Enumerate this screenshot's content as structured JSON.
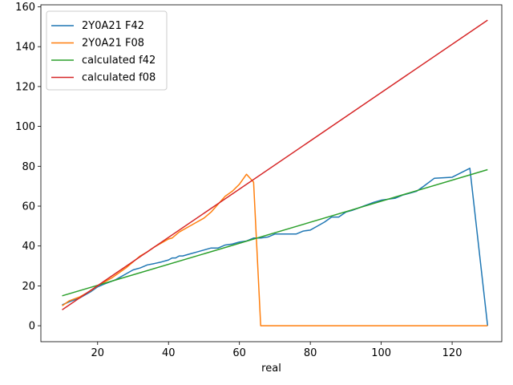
{
  "chart_data": {
    "type": "line",
    "xlabel": "real",
    "ylabel": "",
    "title": "",
    "xlim": [
      4,
      134
    ],
    "ylim": [
      -8,
      161
    ],
    "xticks": [
      20,
      40,
      60,
      80,
      100,
      120
    ],
    "yticks": [
      0,
      20,
      40,
      60,
      80,
      100,
      120,
      140,
      160
    ],
    "grid": false,
    "legend_position": "top-left",
    "series": [
      {
        "name": "2Y0A21 F42",
        "color": "#1f77b4",
        "points": [
          [
            10,
            10.5
          ],
          [
            12,
            12
          ],
          [
            15,
            14
          ],
          [
            18,
            17
          ],
          [
            20,
            19.5
          ],
          [
            22,
            21
          ],
          [
            25,
            23
          ],
          [
            28,
            26
          ],
          [
            30,
            28
          ],
          [
            32,
            29
          ],
          [
            34,
            30.5
          ],
          [
            36,
            31.2
          ],
          [
            38,
            32
          ],
          [
            40,
            33
          ],
          [
            41,
            34
          ],
          [
            42,
            34
          ],
          [
            43,
            35
          ],
          [
            44,
            35
          ],
          [
            46,
            36
          ],
          [
            48,
            37
          ],
          [
            50,
            38
          ],
          [
            52,
            39
          ],
          [
            54,
            39
          ],
          [
            56,
            40.5
          ],
          [
            58,
            41
          ],
          [
            60,
            42
          ],
          [
            62,
            42.5
          ],
          [
            64,
            44
          ],
          [
            66,
            44
          ],
          [
            68,
            44.5
          ],
          [
            70,
            46
          ],
          [
            72,
            46
          ],
          [
            74,
            46
          ],
          [
            76,
            46
          ],
          [
            78,
            47.5
          ],
          [
            80,
            48
          ],
          [
            82,
            50
          ],
          [
            84,
            52
          ],
          [
            86,
            54.5
          ],
          [
            88,
            54.5
          ],
          [
            90,
            57
          ],
          [
            92,
            58
          ],
          [
            95,
            60
          ],
          [
            98,
            62
          ],
          [
            100,
            63
          ],
          [
            102,
            63.5
          ],
          [
            104,
            64
          ],
          [
            106,
            65.5
          ],
          [
            108,
            66.5
          ],
          [
            110,
            67.5
          ],
          [
            112,
            70
          ],
          [
            115,
            74
          ],
          [
            120,
            74.5
          ],
          [
            125,
            79
          ],
          [
            130,
            0
          ]
        ]
      },
      {
        "name": "2Y0A21 F08",
        "color": "#ff7f0e",
        "points": [
          [
            10,
            10
          ],
          [
            12,
            12.5
          ],
          [
            15,
            14.5
          ],
          [
            18,
            17.5
          ],
          [
            20,
            20
          ],
          [
            22,
            22
          ],
          [
            24,
            24
          ],
          [
            26,
            26.5
          ],
          [
            28,
            29
          ],
          [
            30,
            32
          ],
          [
            32,
            35
          ],
          [
            34,
            37
          ],
          [
            36,
            39.5
          ],
          [
            38,
            41.5
          ],
          [
            40,
            43.5
          ],
          [
            41,
            44
          ],
          [
            42,
            45.5
          ],
          [
            43,
            47
          ],
          [
            44,
            48
          ],
          [
            46,
            50
          ],
          [
            48,
            52
          ],
          [
            50,
            54
          ],
          [
            52,
            57
          ],
          [
            54,
            61
          ],
          [
            56,
            65
          ],
          [
            58,
            67.5
          ],
          [
            60,
            71
          ],
          [
            62,
            76
          ],
          [
            64,
            72
          ],
          [
            66,
            0
          ],
          [
            130,
            0
          ]
        ]
      },
      {
        "name": "calculated f42",
        "color": "#2ca02c",
        "points": [
          [
            10,
            15
          ],
          [
            130,
            78.3
          ]
        ]
      },
      {
        "name": "calculated f08",
        "color": "#d62728",
        "points": [
          [
            10,
            8
          ],
          [
            130,
            153.3
          ]
        ]
      }
    ]
  }
}
